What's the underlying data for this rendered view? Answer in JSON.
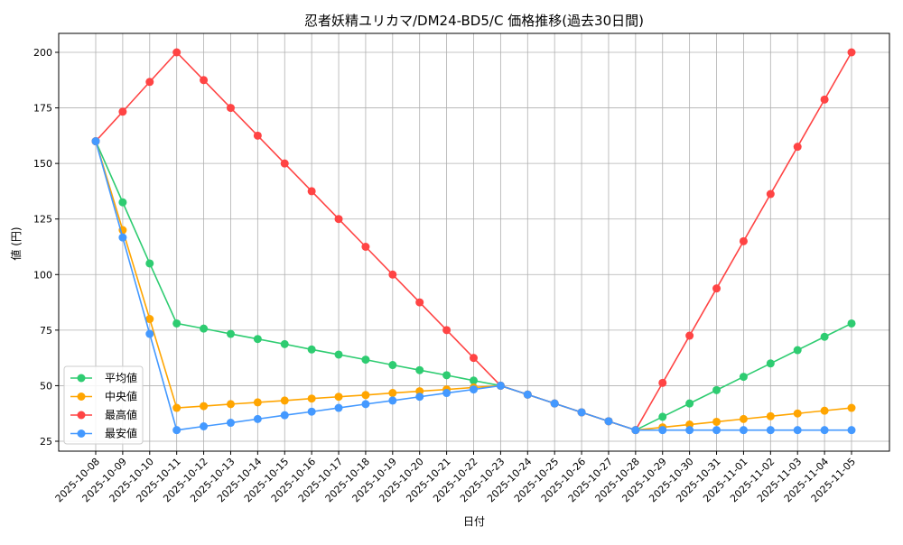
{
  "chart_data": {
    "type": "line",
    "title": "忍者妖精ユリカマ/DM24-BD5/C 価格推移(過去30日間)",
    "xlabel": "日付",
    "ylabel": "値 (円)",
    "ylim": [
      22,
      208
    ],
    "yticks": [
      25,
      50,
      75,
      100,
      125,
      150,
      175,
      200
    ],
    "grid": true,
    "legend_position": "lower-left",
    "x": [
      "2025-10-08",
      "2025-10-09",
      "2025-10-10",
      "2025-10-11",
      "2025-10-12",
      "2025-10-13",
      "2025-10-14",
      "2025-10-15",
      "2025-10-16",
      "2025-10-17",
      "2025-10-18",
      "2025-10-19",
      "2025-10-20",
      "2025-10-21",
      "2025-10-22",
      "2025-10-23",
      "2025-10-24",
      "2025-10-25",
      "2025-10-26",
      "2025-10-27",
      "2025-10-28",
      "2025-10-29",
      "2025-10-30",
      "2025-10-31",
      "2025-11-01",
      "2025-11-02",
      "2025-11-03",
      "2025-11-04",
      "2025-11-05"
    ],
    "series": [
      {
        "name": "平均値",
        "color": "#2ecc71",
        "values": [
          160,
          132.5,
          105,
          78,
          75.7,
          73.3,
          71,
          68.7,
          66.3,
          64,
          61.7,
          59.3,
          57,
          54.7,
          52.3,
          50,
          46,
          42,
          38,
          34,
          30,
          36,
          42,
          48,
          54,
          60,
          66,
          72,
          78
        ]
      },
      {
        "name": "中央値",
        "color": "#ffa500",
        "values": [
          160,
          120,
          80,
          40,
          40.8,
          41.7,
          42.5,
          43.3,
          44.2,
          45,
          45.8,
          46.7,
          47.5,
          48.3,
          49.2,
          50,
          46,
          42,
          38,
          34,
          30,
          31.25,
          32.5,
          33.75,
          35,
          36.25,
          37.5,
          38.75,
          40
        ]
      },
      {
        "name": "最高値",
        "color": "#ff4444",
        "values": [
          160,
          173.3,
          186.7,
          200,
          187.5,
          175,
          162.5,
          150,
          137.5,
          125,
          112.5,
          100,
          87.5,
          75,
          62.5,
          50,
          46,
          42,
          38,
          34,
          30,
          51.25,
          72.5,
          93.75,
          115,
          136.25,
          157.5,
          178.75,
          200
        ]
      },
      {
        "name": "最安値",
        "color": "#4499ff",
        "values": [
          160,
          116.7,
          73.3,
          30,
          31.7,
          33.3,
          35,
          36.7,
          38.3,
          40,
          41.7,
          43.3,
          45,
          46.7,
          48.3,
          50,
          46,
          42,
          38,
          34,
          30,
          30,
          30,
          30,
          30,
          30,
          30,
          30,
          30
        ]
      }
    ]
  }
}
